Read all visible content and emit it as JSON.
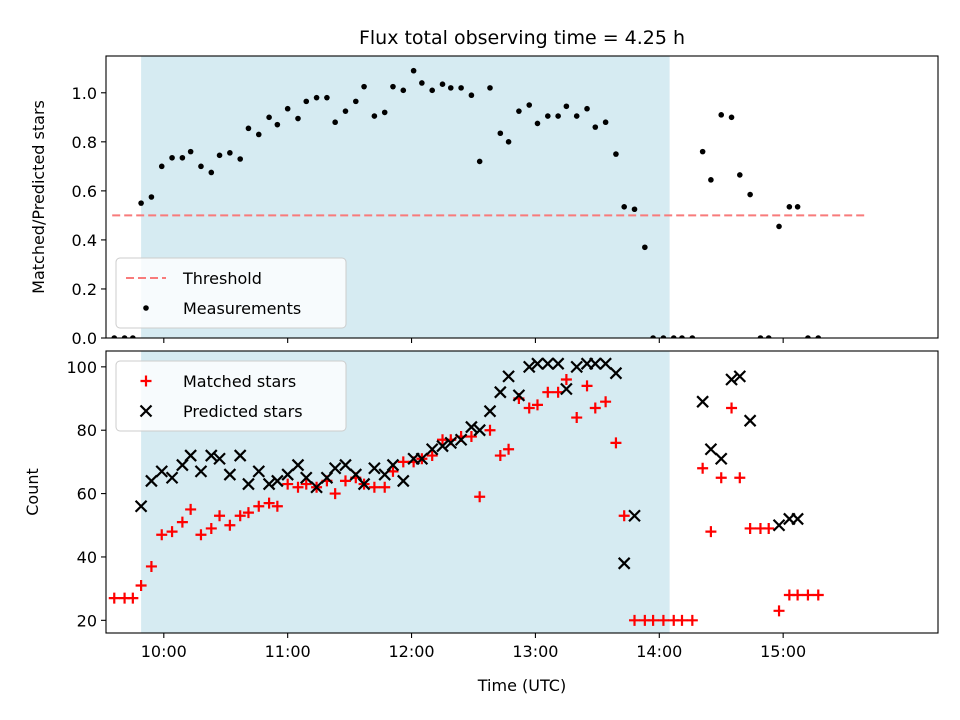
{
  "chart_data": [
    {
      "type": "scatter",
      "title": "Flux total observing time = 4.25 h",
      "xlabel": "",
      "ylabel": "Matched/Predicted stars",
      "xlim": [
        "09:32",
        "16:15"
      ],
      "ylim": [
        0,
        1.15
      ],
      "yticks": [
        0.0,
        0.2,
        0.4,
        0.6,
        0.8,
        1.0
      ],
      "ytick_labels": [
        "0.0",
        "0.2",
        "0.4",
        "0.6",
        "0.8",
        "1.0"
      ],
      "shaded_span": [
        "09:49",
        "14:05"
      ],
      "shaded_color": "#add8e6",
      "threshold": {
        "name": "Threshold",
        "y": 0.5,
        "x_range": [
          "09:35",
          "15:40"
        ],
        "color": "#f87b7b"
      },
      "series": [
        {
          "name": "Measurements",
          "color": "#000000",
          "marker": "dot",
          "points": [
            [
              "09:36",
              0
            ],
            [
              "09:41",
              0
            ],
            [
              "09:45",
              0
            ],
            [
              "09:49",
              0.55
            ],
            [
              "09:54",
              0.575
            ],
            [
              "09:59",
              0.7
            ],
            [
              "10:04",
              0.735
            ],
            [
              "10:09",
              0.735
            ],
            [
              "10:13",
              0.76
            ],
            [
              "10:18",
              0.7
            ],
            [
              "10:23",
              0.675
            ],
            [
              "10:27",
              0.745
            ],
            [
              "10:32",
              0.755
            ],
            [
              "10:37",
              0.73
            ],
            [
              "10:41",
              0.855
            ],
            [
              "10:46",
              0.83
            ],
            [
              "10:51",
              0.9
            ],
            [
              "10:55",
              0.87
            ],
            [
              "11:00",
              0.935
            ],
            [
              "11:05",
              0.895
            ],
            [
              "11:09",
              0.965
            ],
            [
              "11:14",
              0.98
            ],
            [
              "11:19",
              0.98
            ],
            [
              "11:23",
              0.88
            ],
            [
              "11:28",
              0.925
            ],
            [
              "11:33",
              0.965
            ],
            [
              "11:37",
              1.025
            ],
            [
              "11:42",
              0.905
            ],
            [
              "11:47",
              0.92
            ],
            [
              "11:51",
              1.025
            ],
            [
              "11:56",
              1.01
            ],
            [
              "12:01",
              1.09
            ],
            [
              "12:05",
              1.04
            ],
            [
              "12:10",
              1.01
            ],
            [
              "12:15",
              1.035
            ],
            [
              "12:19",
              1.02
            ],
            [
              "12:24",
              1.02
            ],
            [
              "12:29",
              0.99
            ],
            [
              "12:33",
              0.72
            ],
            [
              "12:38",
              1.02
            ],
            [
              "12:43",
              0.835
            ],
            [
              "12:47",
              0.8
            ],
            [
              "12:52",
              0.925
            ],
            [
              "12:57",
              0.95
            ],
            [
              "13:01",
              0.875
            ],
            [
              "13:06",
              0.905
            ],
            [
              "13:11",
              0.905
            ],
            [
              "13:15",
              0.945
            ],
            [
              "13:20",
              0.905
            ],
            [
              "13:25",
              0.935
            ],
            [
              "13:29",
              0.86
            ],
            [
              "13:34",
              0.88
            ],
            [
              "13:39",
              0.75
            ],
            [
              "13:43",
              0.535
            ],
            [
              "13:48",
              0.525
            ],
            [
              "13:53",
              0.37
            ],
            [
              "13:57",
              0
            ],
            [
              "14:02",
              0
            ],
            [
              "14:07",
              0
            ],
            [
              "14:11",
              0
            ],
            [
              "14:16",
              0
            ],
            [
              "14:21",
              0.76
            ],
            [
              "14:25",
              0.645
            ],
            [
              "14:30",
              0.91
            ],
            [
              "14:35",
              0.9
            ],
            [
              "14:39",
              0.665
            ],
            [
              "14:44",
              0.585
            ],
            [
              "14:49",
              0
            ],
            [
              "14:53",
              0
            ],
            [
              "14:58",
              0.455
            ],
            [
              "15:03",
              0.535
            ],
            [
              "15:07",
              0.535
            ],
            [
              "15:12",
              0
            ],
            [
              "15:17",
              0
            ]
          ]
        }
      ],
      "legend": {
        "placement": "lower-left",
        "entries": [
          "Threshold",
          "Measurements"
        ]
      }
    },
    {
      "type": "scatter",
      "title": "",
      "xlabel": "Time (UTC)",
      "ylabel": "Count",
      "xlim": [
        "09:32",
        "16:15"
      ],
      "ylim": [
        16,
        105
      ],
      "yticks": [
        20,
        40,
        60,
        80,
        100
      ],
      "ytick_labels": [
        "20",
        "40",
        "60",
        "80",
        "100"
      ],
      "xticks": [
        "10:00",
        "11:00",
        "12:00",
        "13:00",
        "14:00",
        "15:00"
      ],
      "xtick_labels": [
        "10:00",
        "11:00",
        "12:00",
        "13:00",
        "14:00",
        "15:00"
      ],
      "shaded_span": [
        "09:49",
        "14:05"
      ],
      "shaded_color": "#add8e6",
      "series": [
        {
          "name": "Matched stars",
          "color": "#ff0000",
          "marker": "plus",
          "points": [
            [
              "09:36",
              27
            ],
            [
              "09:41",
              27
            ],
            [
              "09:45",
              27
            ],
            [
              "09:49",
              31
            ],
            [
              "09:54",
              37
            ],
            [
              "09:59",
              47
            ],
            [
              "10:04",
              48
            ],
            [
              "10:09",
              51
            ],
            [
              "10:13",
              55
            ],
            [
              "10:18",
              47
            ],
            [
              "10:23",
              49
            ],
            [
              "10:27",
              53
            ],
            [
              "10:32",
              50
            ],
            [
              "10:37",
              53
            ],
            [
              "10:41",
              54
            ],
            [
              "10:46",
              56
            ],
            [
              "10:51",
              57
            ],
            [
              "10:55",
              56
            ],
            [
              "11:00",
              63
            ],
            [
              "11:05",
              62
            ],
            [
              "11:09",
              63
            ],
            [
              "11:14",
              62
            ],
            [
              "11:19",
              64
            ],
            [
              "11:23",
              60
            ],
            [
              "11:28",
              64
            ],
            [
              "11:33",
              65
            ],
            [
              "11:37",
              63
            ],
            [
              "11:42",
              62
            ],
            [
              "11:47",
              62
            ],
            [
              "11:51",
              67
            ],
            [
              "11:56",
              70
            ],
            [
              "12:01",
              70
            ],
            [
              "12:05",
              71
            ],
            [
              "12:10",
              72
            ],
            [
              "12:15",
              77
            ],
            [
              "12:19",
              77
            ],
            [
              "12:24",
              78
            ],
            [
              "12:29",
              78
            ],
            [
              "12:33",
              59
            ],
            [
              "12:38",
              80
            ],
            [
              "12:43",
              72
            ],
            [
              "12:47",
              74
            ],
            [
              "12:52",
              90
            ],
            [
              "12:57",
              87
            ],
            [
              "13:01",
              88
            ],
            [
              "13:06",
              92
            ],
            [
              "13:11",
              92
            ],
            [
              "13:15",
              96
            ],
            [
              "13:20",
              84
            ],
            [
              "13:25",
              94
            ],
            [
              "13:29",
              87
            ],
            [
              "13:34",
              89
            ],
            [
              "13:39",
              76
            ],
            [
              "13:43",
              53
            ],
            [
              "13:48",
              20
            ],
            [
              "13:53",
              20
            ],
            [
              "13:57",
              20
            ],
            [
              "14:02",
              20
            ],
            [
              "14:07",
              20
            ],
            [
              "14:11",
              20
            ],
            [
              "14:16",
              20
            ],
            [
              "14:21",
              68
            ],
            [
              "14:25",
              48
            ],
            [
              "14:30",
              65
            ],
            [
              "14:35",
              87
            ],
            [
              "14:39",
              65
            ],
            [
              "14:44",
              49
            ],
            [
              "14:49",
              49
            ],
            [
              "14:53",
              49
            ],
            [
              "14:58",
              23
            ],
            [
              "15:03",
              28
            ],
            [
              "15:07",
              28
            ],
            [
              "15:12",
              28
            ],
            [
              "15:17",
              28
            ]
          ]
        },
        {
          "name": "Predicted stars",
          "color": "#000000",
          "marker": "x",
          "points": [
            [
              "09:49",
              56
            ],
            [
              "09:54",
              64
            ],
            [
              "09:59",
              67
            ],
            [
              "10:04",
              65
            ],
            [
              "10:09",
              69
            ],
            [
              "10:13",
              72
            ],
            [
              "10:18",
              67
            ],
            [
              "10:23",
              72
            ],
            [
              "10:27",
              71
            ],
            [
              "10:32",
              66
            ],
            [
              "10:37",
              72
            ],
            [
              "10:41",
              63
            ],
            [
              "10:46",
              67
            ],
            [
              "10:51",
              63
            ],
            [
              "10:55",
              64
            ],
            [
              "11:00",
              66
            ],
            [
              "11:05",
              69
            ],
            [
              "11:09",
              65
            ],
            [
              "11:14",
              62
            ],
            [
              "11:19",
              65
            ],
            [
              "11:23",
              68
            ],
            [
              "11:28",
              69
            ],
            [
              "11:33",
              66
            ],
            [
              "11:37",
              63
            ],
            [
              "11:42",
              68
            ],
            [
              "11:47",
              66
            ],
            [
              "11:51",
              69
            ],
            [
              "11:56",
              64
            ],
            [
              "12:01",
              71
            ],
            [
              "12:05",
              71
            ],
            [
              "12:10",
              74
            ],
            [
              "12:15",
              75
            ],
            [
              "12:19",
              76
            ],
            [
              "12:24",
              77
            ],
            [
              "12:29",
              81
            ],
            [
              "12:33",
              80
            ],
            [
              "12:38",
              86
            ],
            [
              "12:43",
              92
            ],
            [
              "12:47",
              97
            ],
            [
              "12:52",
              91
            ],
            [
              "12:57",
              100
            ],
            [
              "13:01",
              101
            ],
            [
              "13:06",
              101
            ],
            [
              "13:11",
              101
            ],
            [
              "13:15",
              93
            ],
            [
              "13:20",
              100
            ],
            [
              "13:25",
              101
            ],
            [
              "13:29",
              101
            ],
            [
              "13:34",
              101
            ],
            [
              "13:39",
              98
            ],
            [
              "13:43",
              38
            ],
            [
              "13:48",
              53
            ],
            [
              "14:21",
              89
            ],
            [
              "14:25",
              74
            ],
            [
              "14:30",
              71
            ],
            [
              "14:35",
              96
            ],
            [
              "14:39",
              97
            ],
            [
              "14:44",
              83
            ],
            [
              "14:58",
              50
            ],
            [
              "15:03",
              52
            ],
            [
              "15:07",
              52
            ]
          ]
        }
      ],
      "legend": {
        "placement": "upper-left",
        "entries": [
          "Matched stars",
          "Predicted stars"
        ]
      }
    }
  ]
}
